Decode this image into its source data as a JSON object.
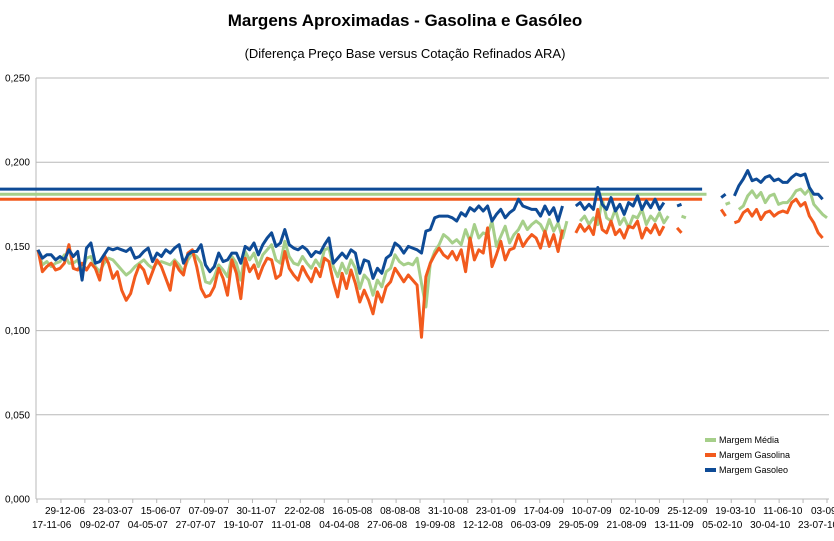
{
  "chart_data": {
    "type": "line",
    "title": "Margens Aproximadas - Gasolina e Gasóleo",
    "subtitle": "(Diferença Preço Base versus Cotação Refinados ARA)",
    "ylim": [
      0,
      0.25
    ],
    "y_ticks": [
      "0,000",
      "0,050",
      "0,100",
      "0,150",
      "0,200",
      "0,250"
    ],
    "grid": "horizontal",
    "legend_position": "bottom-right",
    "x_ticks_row1": [
      "29-12-06",
      "23-03-07",
      "15-06-07",
      "07-09-07",
      "30-11-07",
      "22-02-08",
      "16-05-08",
      "08-08-08",
      "31-10-08",
      "23-01-09",
      "17-04-09",
      "10-07-09",
      "02-10-09",
      "25-12-09",
      "19-03-10",
      "11-06-10",
      "03-09-10"
    ],
    "x_ticks_row2": [
      "17-11-06",
      "09-02-07",
      "04-05-07",
      "27-07-07",
      "19-10-07",
      "11-01-08",
      "04-04-08",
      "27-06-08",
      "19-09-08",
      "12-12-08",
      "06-03-09",
      "29-05-09",
      "21-08-09",
      "13-11-09",
      "05-02-10",
      "30-04-10",
      "23-07-10"
    ],
    "series": [
      {
        "name": "Margem Média",
        "color": "#a6cf8a",
        "values": [
          0.148,
          0.139,
          0.141,
          0.138,
          0.14,
          0.141,
          0.145,
          0.14,
          0.14,
          0.142,
          0.135,
          0.143,
          0.144,
          0.138,
          0.135,
          0.14,
          0.143,
          0.142,
          0.139,
          0.136,
          0.133,
          0.135,
          0.138,
          0.14,
          0.142,
          0.139,
          0.137,
          0.14,
          0.141,
          0.14,
          0.139,
          0.142,
          0.139,
          0.135,
          0.142,
          0.146,
          0.144,
          0.14,
          0.129,
          0.128,
          0.132,
          0.139,
          0.136,
          0.132,
          0.144,
          0.14,
          0.13,
          0.147,
          0.142,
          0.146,
          0.138,
          0.145,
          0.148,
          0.151,
          0.142,
          0.14,
          0.153,
          0.144,
          0.14,
          0.139,
          0.144,
          0.14,
          0.137,
          0.142,
          0.138,
          0.148,
          0.149,
          0.138,
          0.132,
          0.14,
          0.134,
          0.142,
          0.137,
          0.125,
          0.133,
          0.13,
          0.121,
          0.13,
          0.126,
          0.135,
          0.137,
          0.145,
          0.141,
          0.139,
          0.14,
          0.139,
          0.143,
          0.128,
          0.114,
          0.14,
          0.147,
          0.151,
          0.157,
          0.155,
          0.152,
          0.154,
          0.151,
          0.16,
          0.153,
          0.163,
          0.155,
          0.158,
          0.157,
          0.165,
          0.15,
          0.156,
          0.162,
          0.152,
          0.157,
          0.16,
          0.165,
          0.16,
          0.163,
          0.165,
          0.163,
          0.158,
          0.166,
          0.159,
          0.164,
          0.155,
          0.165,
          null,
          null,
          0.165,
          0.168,
          0.163,
          0.167,
          0.163,
          0.178,
          0.167,
          0.165,
          0.172,
          0.163,
          0.167,
          0.161,
          0.168,
          0.167,
          0.172,
          0.163,
          0.168,
          0.165,
          0.17,
          0.164,
          0.168,
          null,
          null,
          0.168,
          0.167,
          null,
          null,
          null,
          null,
          0.181,
          null,
          null,
          null,
          0.175,
          0.176,
          null,
          0.172,
          0.174,
          0.18,
          0.183,
          0.179,
          0.182,
          0.176,
          0.18,
          0.181,
          0.175,
          0.176,
          0.176,
          0.179,
          0.183,
          0.184,
          0.181,
          0.184,
          0.175,
          0.172,
          0.169,
          0.167
        ]
      },
      {
        "name": "Margem Gasolina",
        "color": "#f25a1d",
        "values": [
          0.148,
          0.135,
          0.138,
          0.14,
          0.136,
          0.137,
          0.14,
          0.151,
          0.137,
          0.136,
          0.14,
          0.136,
          0.14,
          0.137,
          0.13,
          0.145,
          0.14,
          0.131,
          0.135,
          0.124,
          0.118,
          0.122,
          0.132,
          0.139,
          0.136,
          0.128,
          0.135,
          0.142,
          0.138,
          0.131,
          0.124,
          0.141,
          0.136,
          0.133,
          0.146,
          0.148,
          0.138,
          0.125,
          0.12,
          0.121,
          0.126,
          0.137,
          0.131,
          0.121,
          0.142,
          0.134,
          0.119,
          0.143,
          0.135,
          0.139,
          0.131,
          0.138,
          0.143,
          0.142,
          0.131,
          0.133,
          0.147,
          0.137,
          0.133,
          0.13,
          0.138,
          0.133,
          0.129,
          0.137,
          0.132,
          0.143,
          0.141,
          0.129,
          0.12,
          0.134,
          0.125,
          0.136,
          0.128,
          0.117,
          0.124,
          0.118,
          0.11,
          0.123,
          0.117,
          0.126,
          0.129,
          0.137,
          0.133,
          0.129,
          0.133,
          0.13,
          0.127,
          0.096,
          0.132,
          0.14,
          0.145,
          0.149,
          0.145,
          0.143,
          0.147,
          0.142,
          0.148,
          0.135,
          0.155,
          0.142,
          0.148,
          0.146,
          0.161,
          0.138,
          0.145,
          0.153,
          0.142,
          0.148,
          0.149,
          0.157,
          0.15,
          0.154,
          0.157,
          0.155,
          0.149,
          0.159,
          0.15,
          0.157,
          0.147,
          0.16,
          null,
          null,
          0.158,
          0.163,
          0.159,
          0.162,
          0.157,
          0.172,
          0.16,
          0.158,
          0.165,
          0.157,
          0.16,
          0.155,
          0.162,
          0.161,
          0.165,
          0.155,
          0.161,
          0.158,
          0.163,
          0.157,
          0.162,
          null,
          null,
          0.161,
          0.158,
          null,
          null,
          null,
          null,
          0.178,
          null,
          null,
          null,
          0.172,
          0.168,
          null,
          0.164,
          0.165,
          0.17,
          0.172,
          0.168,
          0.172,
          0.166,
          0.17,
          0.171,
          0.168,
          0.17,
          0.171,
          0.17,
          0.176,
          0.178,
          0.174,
          0.176,
          0.168,
          0.164,
          0.158,
          0.155
        ]
      },
      {
        "name": "Margem Gasoleo",
        "color": "#0e4b96",
        "values": [
          0.148,
          0.143,
          0.145,
          0.145,
          0.142,
          0.144,
          0.142,
          0.148,
          0.144,
          0.147,
          0.13,
          0.149,
          0.152,
          0.14,
          0.141,
          0.145,
          0.149,
          0.148,
          0.149,
          0.148,
          0.147,
          0.149,
          0.143,
          0.144,
          0.147,
          0.149,
          0.141,
          0.146,
          0.144,
          0.148,
          0.146,
          0.149,
          0.151,
          0.14,
          0.145,
          0.147,
          0.147,
          0.151,
          0.139,
          0.135,
          0.138,
          0.146,
          0.141,
          0.142,
          0.146,
          0.146,
          0.14,
          0.15,
          0.148,
          0.152,
          0.145,
          0.151,
          0.155,
          0.158,
          0.15,
          0.152,
          0.16,
          0.151,
          0.149,
          0.148,
          0.15,
          0.148,
          0.144,
          0.147,
          0.146,
          0.151,
          0.155,
          0.14,
          0.143,
          0.146,
          0.143,
          0.148,
          0.146,
          0.134,
          0.142,
          0.141,
          0.131,
          0.137,
          0.134,
          0.143,
          0.145,
          0.152,
          0.15,
          0.146,
          0.15,
          0.149,
          0.148,
          0.146,
          0.159,
          0.16,
          0.167,
          0.168,
          0.168,
          0.168,
          0.167,
          0.165,
          0.17,
          0.168,
          0.173,
          0.171,
          0.174,
          0.171,
          0.174,
          0.165,
          0.169,
          0.172,
          0.167,
          0.17,
          0.172,
          0.178,
          0.174,
          0.173,
          0.172,
          0.172,
          0.168,
          0.174,
          0.169,
          0.173,
          0.165,
          0.174,
          null,
          null,
          0.174,
          0.176,
          0.172,
          0.175,
          0.172,
          0.185,
          0.175,
          0.172,
          0.179,
          0.171,
          0.175,
          0.169,
          0.176,
          0.174,
          0.18,
          0.172,
          0.177,
          0.173,
          0.178,
          0.172,
          0.176,
          null,
          null,
          0.174,
          0.175,
          null,
          null,
          null,
          null,
          0.184,
          null,
          null,
          null,
          0.179,
          0.181,
          null,
          0.18,
          0.186,
          0.19,
          0.195,
          0.189,
          0.19,
          0.188,
          0.191,
          0.192,
          0.189,
          0.19,
          0.188,
          0.188,
          0.191,
          0.193,
          0.192,
          0.193,
          0.185,
          0.181,
          0.181,
          0.178
        ]
      }
    ]
  }
}
